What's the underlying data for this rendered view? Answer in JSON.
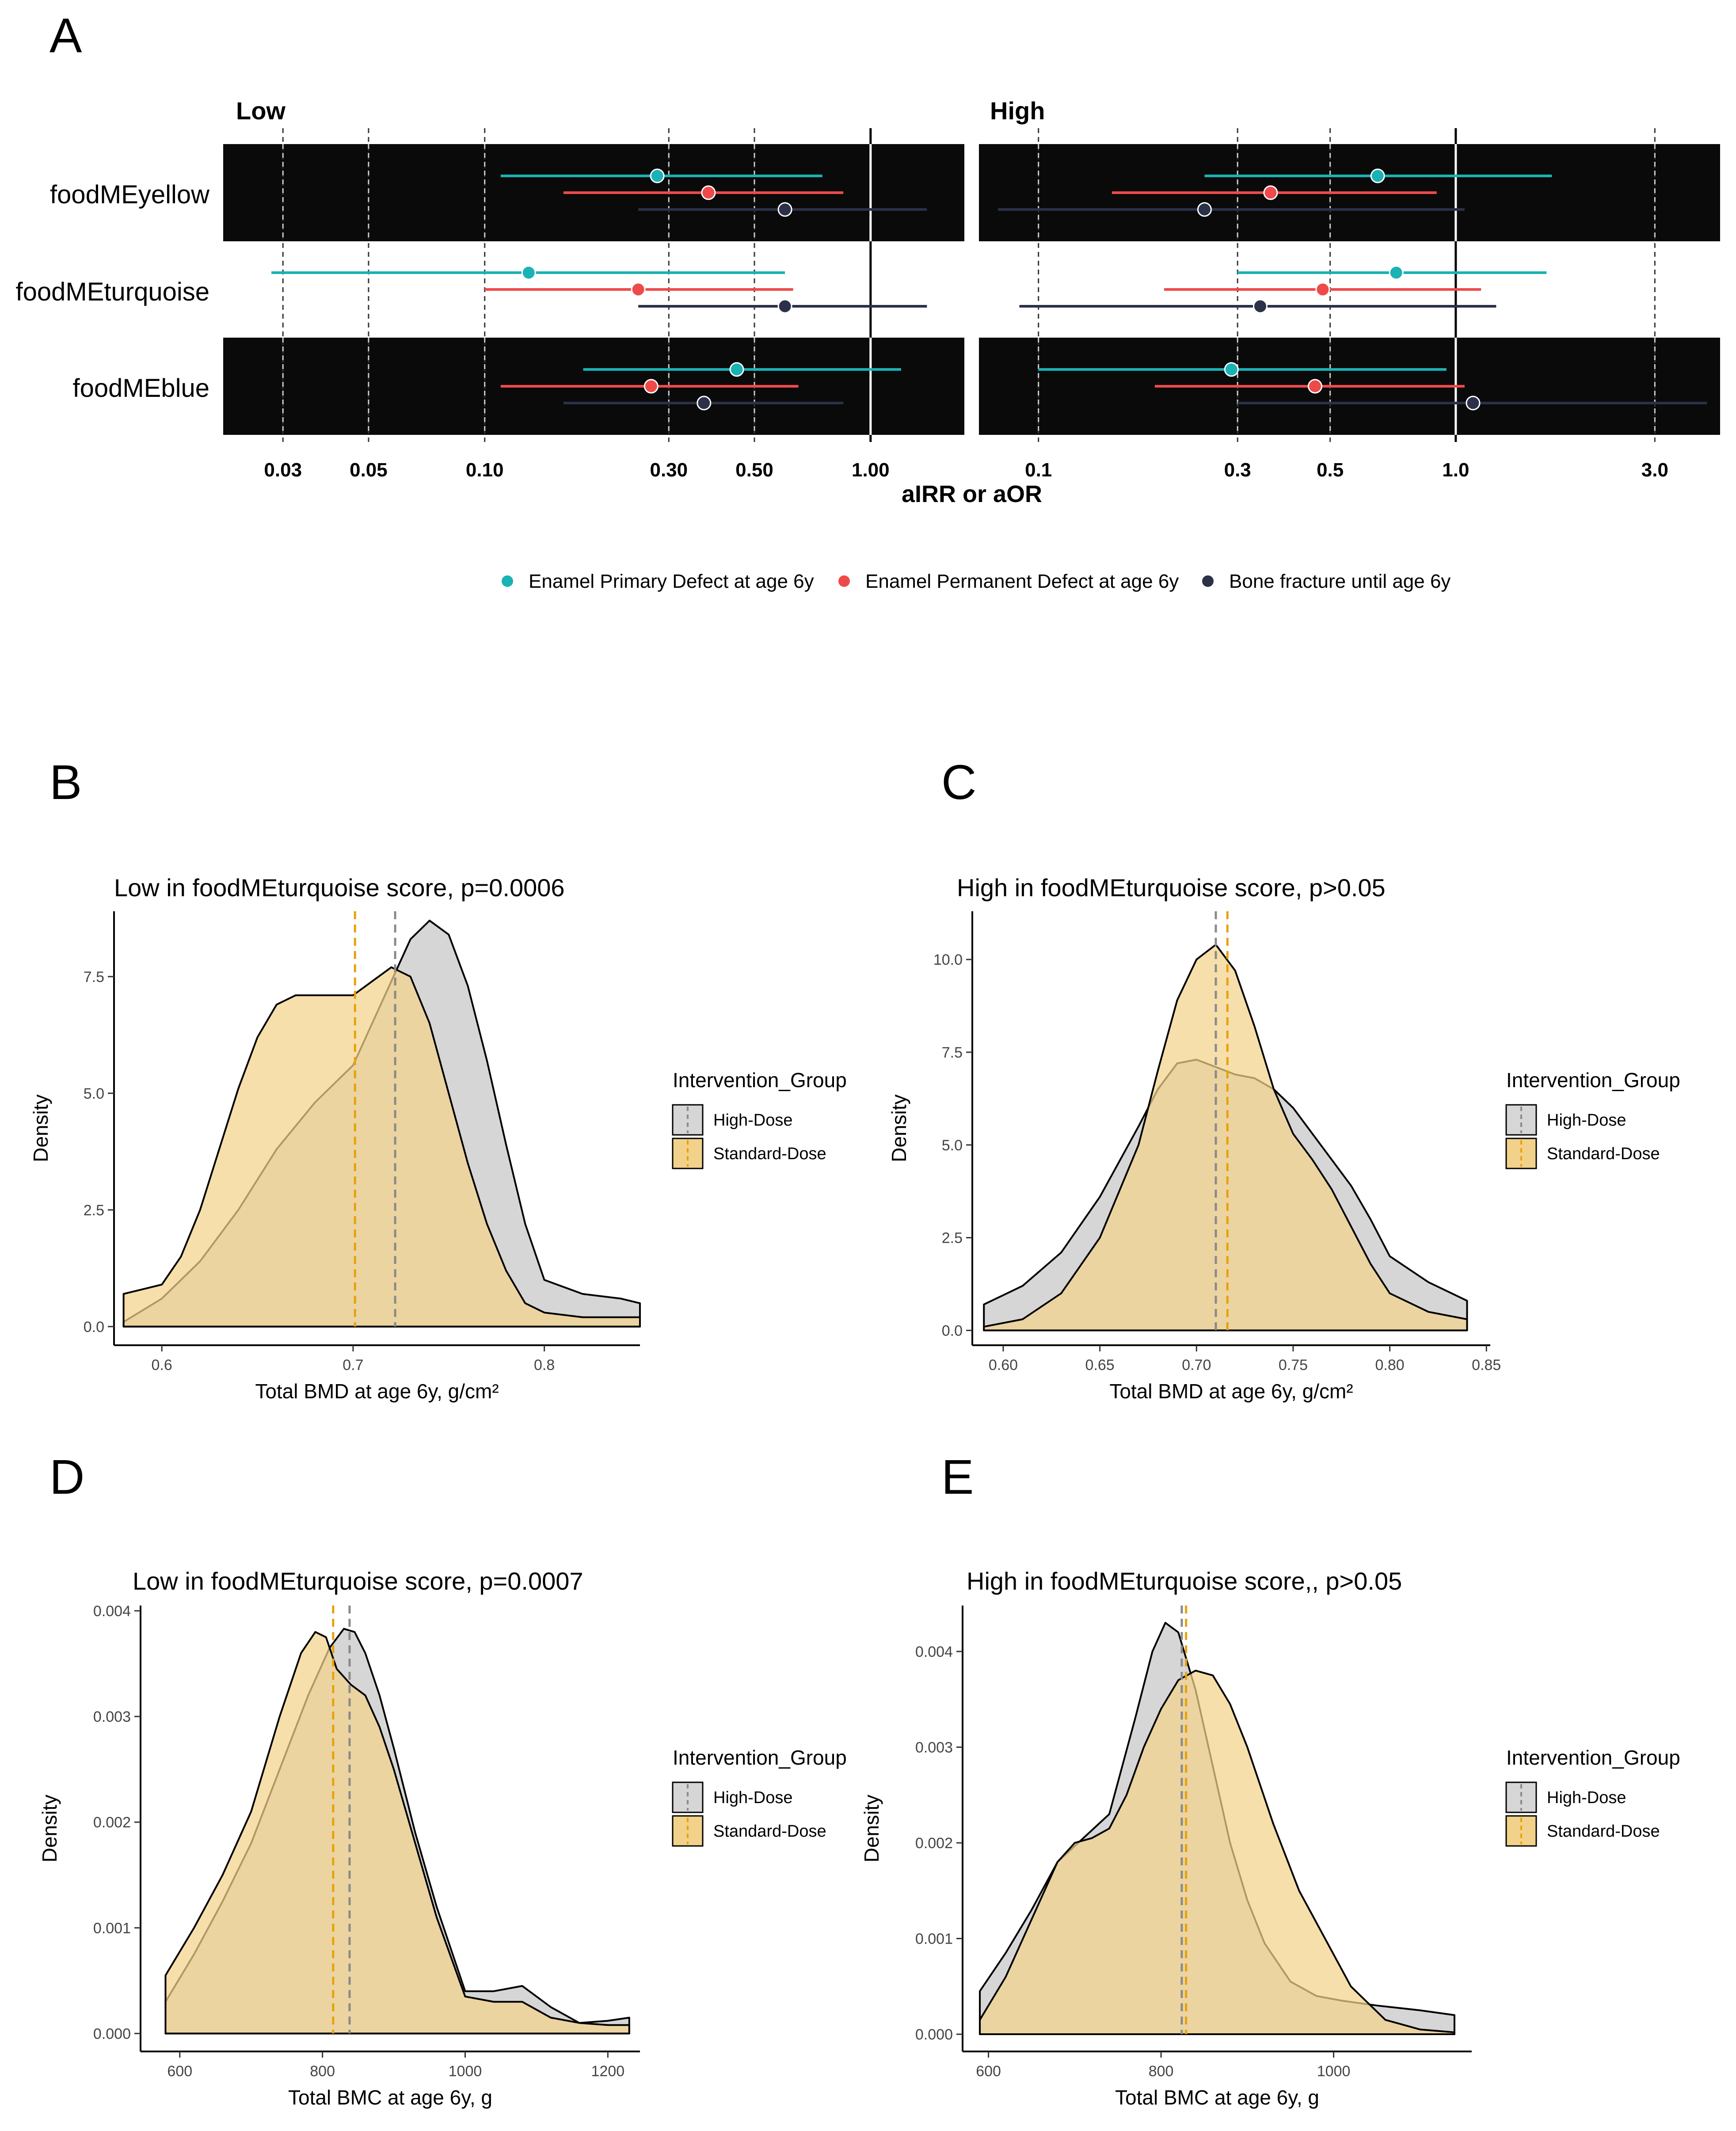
{
  "panelA": {
    "letter": "A",
    "facets": [
      "Low",
      "High"
    ],
    "rows": [
      "foodMEyellow",
      "foodMEturquoise",
      "foodMEblue"
    ],
    "x_title": "aIRR or aOR",
    "legend": [
      {
        "label": "Enamel Primary Defect at age 6y",
        "color": "#1ab2b4"
      },
      {
        "label": "Enamel Permanent Defect at age 6y",
        "color": "#ef4a4a"
      },
      {
        "label": "Bone fracture until age 6y",
        "color": "#2a3148"
      }
    ]
  },
  "chart_data": [
    {
      "type": "forest",
      "panel": "A",
      "facet": "Low",
      "scale": "log",
      "xlim": [
        0.021,
        1.75
      ],
      "ticks": [
        0.03,
        0.05,
        0.1,
        0.3,
        0.5,
        1.0
      ],
      "tick_labels": [
        "0.03",
        "0.05",
        "0.10",
        "0.30",
        "0.50",
        "1.00"
      ],
      "reference_line": 1.0,
      "series": [
        {
          "name": "Enamel Primary Defect at age 6y",
          "points": [
            {
              "row": "foodMEyellow",
              "est": 0.28,
              "lo": 0.11,
              "hi": 0.75
            },
            {
              "row": "foodMEturquoise",
              "est": 0.13,
              "lo": 0.028,
              "hi": 0.6
            },
            {
              "row": "foodMEblue",
              "est": 0.45,
              "lo": 0.18,
              "hi": 1.2
            }
          ]
        },
        {
          "name": "Enamel Permanent Defect at age 6y",
          "points": [
            {
              "row": "foodMEyellow",
              "est": 0.38,
              "lo": 0.16,
              "hi": 0.85
            },
            {
              "row": "foodMEturquoise",
              "est": 0.25,
              "lo": 0.1,
              "hi": 0.63
            },
            {
              "row": "foodMEblue",
              "est": 0.27,
              "lo": 0.11,
              "hi": 0.65
            }
          ]
        },
        {
          "name": "Bone fracture until age 6y",
          "points": [
            {
              "row": "foodMEyellow",
              "est": 0.6,
              "lo": 0.25,
              "hi": 1.4
            },
            {
              "row": "foodMEturquoise",
              "est": 0.6,
              "lo": 0.25,
              "hi": 1.4
            },
            {
              "row": "foodMEblue",
              "est": 0.37,
              "lo": 0.16,
              "hi": 0.85
            }
          ]
        }
      ]
    },
    {
      "type": "forest",
      "panel": "A",
      "facet": "High",
      "scale": "log",
      "xlim": [
        0.072,
        4.3
      ],
      "ticks": [
        0.1,
        0.3,
        0.5,
        1.0,
        3.0
      ],
      "tick_labels": [
        "0.1",
        "0.3",
        "0.5",
        "1.0",
        "3.0"
      ],
      "reference_line": 1.0,
      "series": [
        {
          "name": "Enamel Primary Defect at age 6y",
          "points": [
            {
              "row": "foodMEyellow",
              "est": 0.65,
              "lo": 0.25,
              "hi": 1.7
            },
            {
              "row": "foodMEturquoise",
              "est": 0.72,
              "lo": 0.3,
              "hi": 1.65
            },
            {
              "row": "foodMEblue",
              "est": 0.29,
              "lo": 0.1,
              "hi": 0.95
            }
          ]
        },
        {
          "name": "Enamel Permanent Defect at age 6y",
          "points": [
            {
              "row": "foodMEyellow",
              "est": 0.36,
              "lo": 0.15,
              "hi": 0.9
            },
            {
              "row": "foodMEturquoise",
              "est": 0.48,
              "lo": 0.2,
              "hi": 1.15
            },
            {
              "row": "foodMEblue",
              "est": 0.46,
              "lo": 0.19,
              "hi": 1.05
            }
          ]
        },
        {
          "name": "Bone fracture until age 6y",
          "points": [
            {
              "row": "foodMEyellow",
              "est": 0.25,
              "lo": 0.08,
              "hi": 1.05
            },
            {
              "row": "foodMEturquoise",
              "est": 0.34,
              "lo": 0.09,
              "hi": 1.25
            },
            {
              "row": "foodMEblue",
              "est": 1.1,
              "lo": 0.3,
              "hi": 4.0
            }
          ]
        }
      ]
    },
    {
      "type": "density",
      "panel": "B",
      "title": "Low in foodMEturquoise score, p=0.0006",
      "xlabel": "Total BMD at age 6y, g/cm²",
      "ylabel": "Density",
      "xlim": [
        0.575,
        0.85
      ],
      "ylim": [
        -0.4,
        8.9
      ],
      "xticks": [
        0.6,
        0.7,
        0.8
      ],
      "xtick_labels": [
        "0.6",
        "0.7",
        "0.8"
      ],
      "yticks": [
        0,
        2.5,
        5,
        7.5
      ],
      "ytick_labels": [
        "0.0",
        "2.5",
        "5.0",
        "7.5"
      ],
      "legend_title": "Intervention_Group",
      "series": [
        {
          "name": "High-Dose",
          "color": "#d6d6d6",
          "mean": 0.722,
          "x": [
            0.58,
            0.6,
            0.62,
            0.64,
            0.66,
            0.68,
            0.7,
            0.72,
            0.73,
            0.74,
            0.75,
            0.76,
            0.77,
            0.78,
            0.79,
            0.8,
            0.82,
            0.84,
            0.85
          ],
          "y": [
            0.1,
            0.6,
            1.4,
            2.5,
            3.8,
            4.8,
            5.6,
            7.4,
            8.3,
            8.7,
            8.4,
            7.3,
            5.7,
            3.9,
            2.2,
            1.0,
            0.7,
            0.6,
            0.5
          ]
        },
        {
          "name": "Standard-Dose",
          "color": "#f2d28a",
          "mean": 0.701,
          "x": [
            0.58,
            0.59,
            0.6,
            0.61,
            0.62,
            0.63,
            0.64,
            0.65,
            0.66,
            0.67,
            0.68,
            0.69,
            0.7,
            0.71,
            0.72,
            0.73,
            0.74,
            0.75,
            0.76,
            0.77,
            0.78,
            0.79,
            0.8,
            0.82,
            0.84,
            0.85
          ],
          "y": [
            0.7,
            0.8,
            0.9,
            1.5,
            2.5,
            3.8,
            5.1,
            6.2,
            6.9,
            7.1,
            7.1,
            7.1,
            7.1,
            7.4,
            7.7,
            7.5,
            6.5,
            5.0,
            3.5,
            2.2,
            1.2,
            0.5,
            0.3,
            0.2,
            0.2,
            0.2
          ]
        }
      ]
    },
    {
      "type": "density",
      "panel": "C",
      "title": "High in foodMEturquoise score, p>0.05",
      "xlabel": "Total BMD at age 6y, g/cm²",
      "ylabel": "Density",
      "xlim": [
        0.584,
        0.852
      ],
      "ylim": [
        -0.4,
        11.3
      ],
      "xticks": [
        0.6,
        0.65,
        0.7,
        0.75,
        0.8,
        0.85
      ],
      "xtick_labels": [
        "0.60",
        "0.65",
        "0.70",
        "0.75",
        "0.80",
        "0.85"
      ],
      "yticks": [
        0,
        2.5,
        5,
        7.5,
        10
      ],
      "ytick_labels": [
        "0.0",
        "2.5",
        "5.0",
        "7.5",
        "10.0"
      ],
      "legend_title": "Intervention_Group",
      "series": [
        {
          "name": "High-Dose",
          "color": "#d6d6d6",
          "mean": 0.71,
          "x": [
            0.59,
            0.61,
            0.63,
            0.65,
            0.67,
            0.68,
            0.69,
            0.7,
            0.71,
            0.72,
            0.73,
            0.74,
            0.75,
            0.76,
            0.77,
            0.78,
            0.79,
            0.8,
            0.82,
            0.84
          ],
          "y": [
            0.7,
            1.2,
            2.1,
            3.6,
            5.5,
            6.5,
            7.2,
            7.3,
            7.1,
            6.9,
            6.8,
            6.5,
            6.0,
            5.3,
            4.6,
            3.9,
            3.0,
            2.0,
            1.3,
            0.8
          ]
        },
        {
          "name": "Standard-Dose",
          "color": "#f2d28a",
          "mean": 0.716,
          "x": [
            0.59,
            0.61,
            0.63,
            0.65,
            0.67,
            0.68,
            0.69,
            0.7,
            0.71,
            0.72,
            0.73,
            0.74,
            0.75,
            0.76,
            0.77,
            0.78,
            0.79,
            0.8,
            0.82,
            0.84
          ],
          "y": [
            0.1,
            0.3,
            1.0,
            2.5,
            5.0,
            7.0,
            8.9,
            10.0,
            10.4,
            9.7,
            8.2,
            6.5,
            5.3,
            4.6,
            3.8,
            2.8,
            1.8,
            1.0,
            0.5,
            0.3
          ]
        }
      ]
    },
    {
      "type": "density",
      "panel": "D",
      "title": "Low in foodMEturquoise score, p=0.0007",
      "xlabel": "Total BMC at age 6y, g",
      "ylabel": "Density",
      "xlim": [
        545,
        1245
      ],
      "ylim": [
        -0.00017,
        0.00405
      ],
      "xticks": [
        600,
        800,
        1000,
        1200
      ],
      "xtick_labels": [
        "600",
        "800",
        "1000",
        "1200"
      ],
      "yticks": [
        0,
        0.001,
        0.002,
        0.003,
        0.004
      ],
      "ytick_labels": [
        "0.000",
        "0.001",
        "0.002",
        "0.003",
        "0.004"
      ],
      "legend_title": "Intervention_Group",
      "series": [
        {
          "name": "High-Dose",
          "color": "#d6d6d6",
          "mean": 838,
          "x": [
            580,
            620,
            660,
            700,
            740,
            780,
            810,
            830,
            845,
            860,
            880,
            900,
            930,
            960,
            1000,
            1040,
            1080,
            1120,
            1160,
            1200,
            1230
          ],
          "y": [
            0.0003,
            0.00075,
            0.00125,
            0.0018,
            0.0025,
            0.0032,
            0.00365,
            0.00383,
            0.0038,
            0.0036,
            0.0032,
            0.0027,
            0.0019,
            0.0012,
            0.0004,
            0.0004,
            0.00045,
            0.00025,
            0.0001,
            0.00012,
            0.00015
          ]
        },
        {
          "name": "Standard-Dose",
          "color": "#f2d28a",
          "mean": 815,
          "x": [
            580,
            620,
            660,
            700,
            740,
            770,
            790,
            805,
            820,
            840,
            860,
            880,
            900,
            930,
            960,
            1000,
            1040,
            1080,
            1120,
            1160,
            1200,
            1230
          ],
          "y": [
            0.00055,
            0.001,
            0.0015,
            0.0021,
            0.003,
            0.0036,
            0.0038,
            0.00375,
            0.00345,
            0.0033,
            0.0032,
            0.0029,
            0.0025,
            0.0018,
            0.0011,
            0.00035,
            0.0003,
            0.0003,
            0.00015,
            0.0001,
            8e-05,
            8e-05
          ]
        }
      ]
    },
    {
      "type": "density",
      "panel": "E",
      "title": "High in foodMEturquoise score,, p>0.05",
      "xlabel": "Total BMC at age 6y, g",
      "ylabel": "Density",
      "xlim": [
        570,
        1160
      ],
      "ylim": [
        -0.00018,
        0.00448
      ],
      "xticks": [
        600,
        800,
        1000
      ],
      "xtick_labels": [
        "600",
        "800",
        "1000"
      ],
      "yticks": [
        0,
        0.001,
        0.002,
        0.003,
        0.004
      ],
      "ytick_labels": [
        "0.000",
        "0.001",
        "0.002",
        "0.003",
        "0.004"
      ],
      "legend_title": "Intervention_Group",
      "series": [
        {
          "name": "High-Dose",
          "color": "#d6d6d6",
          "mean": 824,
          "x": [
            590,
            620,
            650,
            680,
            710,
            740,
            770,
            790,
            805,
            820,
            840,
            860,
            880,
            900,
            920,
            950,
            980,
            1010,
            1050,
            1100,
            1140
          ],
          "y": [
            0.00045,
            0.00085,
            0.0013,
            0.0018,
            0.00205,
            0.0023,
            0.0033,
            0.004,
            0.0043,
            0.0042,
            0.0036,
            0.0028,
            0.002,
            0.0014,
            0.00095,
            0.00055,
            0.0004,
            0.00035,
            0.0003,
            0.00025,
            0.0002
          ]
        },
        {
          "name": "Standard-Dose",
          "color": "#f2d28a",
          "mean": 829,
          "x": [
            590,
            620,
            650,
            680,
            700,
            720,
            740,
            760,
            780,
            800,
            820,
            840,
            860,
            880,
            900,
            930,
            960,
            990,
            1020,
            1060,
            1100,
            1140
          ],
          "y": [
            0.00015,
            0.0006,
            0.0012,
            0.0018,
            0.002,
            0.00205,
            0.00215,
            0.0025,
            0.003,
            0.0034,
            0.0037,
            0.0038,
            0.00375,
            0.00345,
            0.003,
            0.0022,
            0.0015,
            0.001,
            0.0005,
            0.00015,
            5e-05,
            2e-05
          ]
        }
      ]
    }
  ]
}
